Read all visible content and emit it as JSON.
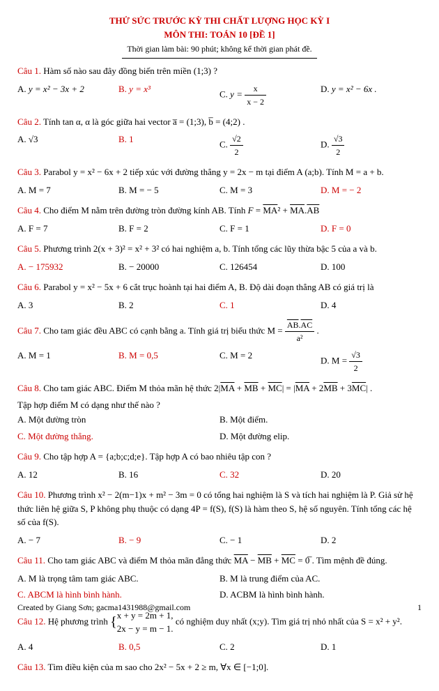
{
  "header": {
    "title1": "THỬ SỨC TRƯỚC KỲ THI CHẤT LƯỢNG HỌC KỲ I",
    "title2": "MÔN THI: TOÁN 10 [ĐỀ 1]",
    "subtitle": "Thời gian làm bài: 90 phút; không kể thời gian phát đề."
  },
  "q1": {
    "text": "Hàm số nào sau đây đồng biến trên miền (1;3) ?",
    "a": "y = x² − 3x + 2",
    "b": "y = x³",
    "c_pre": "y = ",
    "c_num": "x",
    "c_den": "x − 2",
    "d": "y = x² − 6x ."
  },
  "q2": {
    "text": "Tính tan α, α là góc giữa hai vector a̅ = (1;3), b̅ = (4;2) .",
    "a": "√3",
    "b": "1",
    "c_num": "√2",
    "c_den": "2",
    "d_num": "√3",
    "d_den": "2"
  },
  "q3": {
    "text": "Parabol y = x² − 6x + 2 tiếp xúc với đường thẳng y = 2x − m tại điểm A (a;b). Tính M = a + b.",
    "a": "M = 7",
    "b": "M = − 5",
    "c": "M = 3",
    "d": "M = − 2"
  },
  "q4": {
    "text": "Cho điểm M nằm trên đường tròn đường kính AB. Tính F = MA² + MA.AB",
    "a": "F = 7",
    "b": "F = 2",
    "c": "F = 1",
    "d": "F = 0"
  },
  "q5": {
    "text": "Phương trình 2(x + 3)² = x² + 3² có hai nghiệm a, b. Tính tổng các lũy thừa bậc 5 của a và b.",
    "a": "− 175932",
    "b": "− 20000",
    "c": "126454",
    "d": "100"
  },
  "q6": {
    "text": "Parabol y = x² − 5x + 6 cắt trục hoành tại hai điểm A, B. Độ dài đoạn thẳng AB có giá trị là",
    "a": "3",
    "b": "2",
    "c": "1",
    "d": "4"
  },
  "q7": {
    "text_pre": "Cho tam giác đều ABC có cạnh bằng a. Tính giá trị biểu thức M = ",
    "num": "AB.AC",
    "den": "a²",
    "a": "M = 1",
    "b": "M = 0,5",
    "c": "M = 2",
    "d_pre": "M = ",
    "d_num": "√3",
    "d_den": "2"
  },
  "q8": {
    "text": "Cho tam giác ABC. Điểm M thỏa mãn hệ thức 2|MA + MB + MC| = |MA + 2MB + 3MC| .",
    "sub": "Tập hợp điểm M có dạng như thế nào ?",
    "a": "Một đường tròn",
    "b": "Một điểm.",
    "c": "Một đường thẳng.",
    "d": "Một đường elip."
  },
  "q9": {
    "text": "Cho tập hợp A = {a;b;c;d;e}. Tập hợp A có bao nhiêu tập con ?",
    "a": "12",
    "b": "16",
    "c": "32",
    "d": "20"
  },
  "q10": {
    "text": "Phương trình x² − 2(m−1)x + m² − 3m = 0 có tổng hai nghiệm là S và tích hai nghiệm là P. Giả sử hệ thức liên hệ giữa S, P không phụ thuộc có dạng 4P = f(S), f(S) là hàm theo S, hệ số nguyên. Tính tổng các hệ số của f(S).",
    "a": "− 7",
    "b": "− 9",
    "c": "− 1",
    "d": "2"
  },
  "q11": {
    "text": "Cho tam giác ABC và điểm M thỏa mãn đẳng thức MA − MB + MC = 0̅ . Tìm mệnh đề đúng.",
    "a": "M là trọng tâm tam giác ABC.",
    "b": "M là trung điểm của AC.",
    "c": "ABCM là hình bình hành.",
    "d": "ACBM là hình bình hành."
  },
  "q12": {
    "text_pre": "Hệ phương trình ",
    "sys1": "x + y = 2m + 1,",
    "sys2": "2x − y = m − 1.",
    "text_post": " có nghiệm duy nhất (x;y). Tìm giá trị nhỏ nhất của S = x² + y².",
    "a": "4",
    "b": "0,5",
    "c": "2",
    "d": "1"
  },
  "q13": {
    "text": "Tìm điều kiện của m sao cho 2x² − 5x + 2 ≥ m, ∀x ∈ [−1;0]."
  },
  "footer": "Created by Giang Sơn; gacma1431988@gmail.com",
  "page": "1"
}
